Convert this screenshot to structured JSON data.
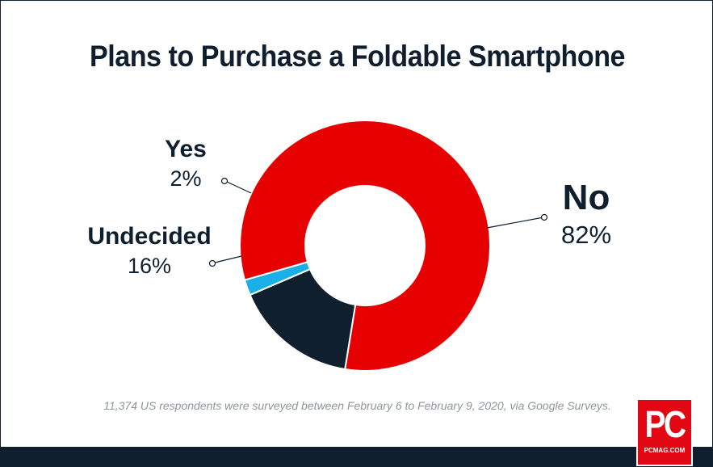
{
  "chart_data": {
    "type": "pie",
    "title": "Plans to Purchase a Foldable Smartphone",
    "categories": [
      "No",
      "Undecided",
      "Yes"
    ],
    "values": [
      82,
      16,
      2
    ],
    "display_values": [
      "82%",
      "16%",
      "2%"
    ],
    "colors": [
      "#e60000",
      "#0f1f2e",
      "#1aafe6"
    ],
    "footnote": "11,374 US respondents were surveyed between February 6 to February 9, 2020, via Google Surveys."
  },
  "brand": {
    "logo_mark": "PC",
    "logo_sub": "PCMAG.COM",
    "logo_color": "#e30613"
  }
}
